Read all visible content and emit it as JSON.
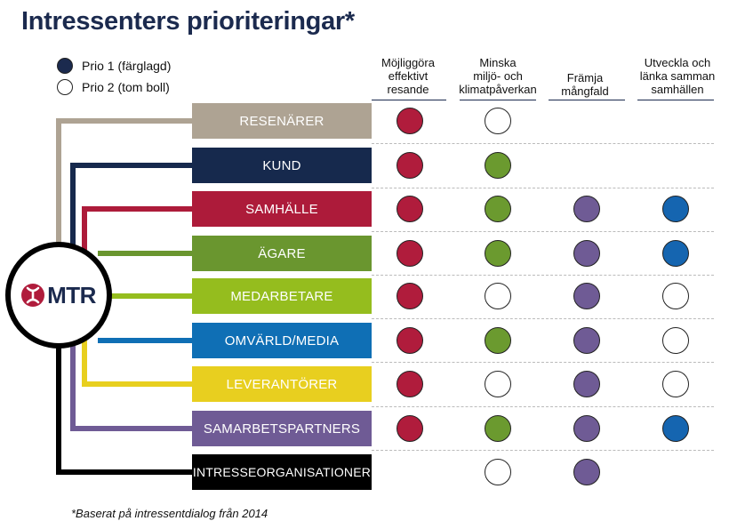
{
  "title": "Intressenters prioriteringar*",
  "legend": [
    {
      "label": "Prio 1 (färglagd)",
      "filled": true,
      "color": "#1b2a4e"
    },
    {
      "label": "Prio 2 (tom boll)",
      "filled": false
    }
  ],
  "columns": [
    {
      "line1": "Möjliggöra",
      "line2": "effektivt",
      "line3": "resande"
    },
    {
      "line1": "Minska",
      "line2": "miljö- och",
      "line3": "klimatpåverkan"
    },
    {
      "line1": "Främja",
      "line2": "mångfald",
      "line3": ""
    },
    {
      "line1": "Utveckla och",
      "line2": "länka samman",
      "line3": "samhällen"
    }
  ],
  "column_colors": [
    "#b01c3c",
    "#6b9a2f",
    "#6f5b95",
    "#1565b0"
  ],
  "rows": [
    {
      "label": "RESENÄRER",
      "color": "#aea393",
      "cells": [
        "prio1",
        "prio2",
        "none",
        "none"
      ]
    },
    {
      "label": "KUND",
      "color": "#16294d",
      "cells": [
        "prio1",
        "prio1",
        "none",
        "none"
      ]
    },
    {
      "label": "SAMHÄLLE",
      "color": "#ad1b3a",
      "cells": [
        "prio1",
        "prio1",
        "prio1",
        "prio1"
      ]
    },
    {
      "label": "ÄGARE",
      "color": "#6a962f",
      "cells": [
        "prio1",
        "prio1",
        "prio1",
        "prio1"
      ]
    },
    {
      "label": "MEDARBETARE",
      "color": "#95bd1e",
      "cells": [
        "prio1",
        "prio2",
        "prio1",
        "prio2"
      ]
    },
    {
      "label": "OMVÄRLD/MEDIA",
      "color": "#0f6fb5",
      "cells": [
        "prio1",
        "prio1",
        "prio1",
        "prio2"
      ]
    },
    {
      "label": "LEVERANTÖRER",
      "color": "#e8cf1f",
      "cells": [
        "prio1",
        "prio2",
        "prio1",
        "prio2"
      ]
    },
    {
      "label": "SAMARBETSPARTNERS",
      "color": "#6f5b95",
      "cells": [
        "prio1",
        "prio1",
        "prio1",
        "prio1"
      ]
    },
    {
      "label": "INTRESSEORGANISATIONER",
      "color": "#000000",
      "cells": [
        "none",
        "prio2",
        "prio1",
        "none"
      ]
    }
  ],
  "logo": {
    "text": "MTR",
    "color": "#b01c3c"
  },
  "footnote": "*Baserat på intressentdialog från 2014"
}
